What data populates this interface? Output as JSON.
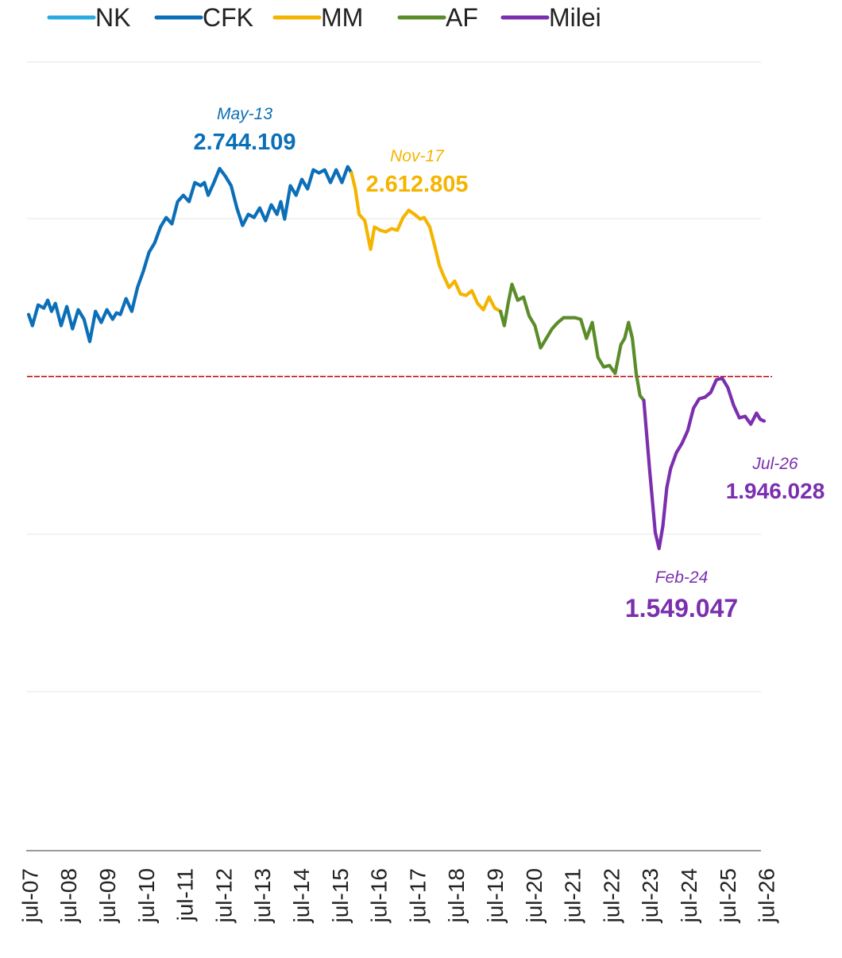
{
  "legend": [
    {
      "name": "NK",
      "color": "#29ABE2"
    },
    {
      "name": "CFK",
      "color": "#0B6FB8"
    },
    {
      "name": "MM",
      "color": "#F4B400"
    },
    {
      "name": "AF",
      "color": "#5B8C2A"
    },
    {
      "name": "Milei",
      "color": "#7B2FAE"
    }
  ],
  "colors": {
    "reference_line": "#C00000",
    "grid": "#e6e6e6",
    "axis": "#9a9a9a",
    "axis_text": "#222222"
  },
  "chart_data": {
    "type": "line",
    "title": "",
    "xlabel": "",
    "ylabel": "",
    "ylim": [
      1200000,
      3100000
    ],
    "grid": true,
    "legend_position": "top-left",
    "reference_line": {
      "y": 2090000,
      "style": "dashed",
      "color": "#C00000"
    },
    "x_tick_labels": [
      "jul-07",
      "jul-08",
      "jul-09",
      "jul-10",
      "jul-11",
      "jul-12",
      "jul-13",
      "jul-14",
      "jul-15",
      "jul-16",
      "jul-17",
      "jul-18",
      "jul-19",
      "jul-20",
      "jul-21",
      "jul-22",
      "jul-23",
      "jul-24",
      "jul-25",
      "jul-26"
    ],
    "series": [
      {
        "name": "CFK",
        "color": "#0B6FB8",
        "x": [
          2007.5,
          2007.6,
          2007.75,
          2007.9,
          2008.0,
          2008.1,
          2008.2,
          2008.35,
          2008.5,
          2008.65,
          2008.8,
          2008.95,
          2009.1,
          2009.25,
          2009.4,
          2009.55,
          2009.7,
          2009.8,
          2009.9,
          2010.05,
          2010.2,
          2010.35,
          2010.5,
          2010.65,
          2010.8,
          2010.95,
          2011.1,
          2011.25,
          2011.4,
          2011.55,
          2011.7,
          2011.85,
          2012.0,
          2012.1,
          2012.2,
          2012.35,
          2012.5,
          2012.65,
          2012.8,
          2012.95,
          2013.1,
          2013.25,
          2013.4,
          2013.55,
          2013.7,
          2013.85,
          2014.0,
          2014.1,
          2014.2,
          2014.35,
          2014.5,
          2014.65,
          2014.8,
          2014.95,
          2015.1,
          2015.25,
          2015.4,
          2015.55,
          2015.7,
          2015.85,
          2015.95
        ],
        "values": [
          2285000,
          2250000,
          2315000,
          2305000,
          2330000,
          2295000,
          2320000,
          2250000,
          2310000,
          2240000,
          2300000,
          2270000,
          2200000,
          2295000,
          2260000,
          2300000,
          2270000,
          2290000,
          2285000,
          2335000,
          2295000,
          2370000,
          2420000,
          2480000,
          2510000,
          2560000,
          2590000,
          2570000,
          2640000,
          2660000,
          2640000,
          2700000,
          2690000,
          2700000,
          2660000,
          2700000,
          2744109,
          2720000,
          2690000,
          2620000,
          2565000,
          2600000,
          2590000,
          2620000,
          2580000,
          2630000,
          2600000,
          2640000,
          2585000,
          2690000,
          2660000,
          2710000,
          2680000,
          2740000,
          2730000,
          2740000,
          2700000,
          2740000,
          2700000,
          2750000,
          2730000
        ]
      },
      {
        "name": "MM",
        "color": "#F4B400",
        "x": [
          2015.95,
          2016.05,
          2016.15,
          2016.3,
          2016.45,
          2016.55,
          2016.7,
          2016.85,
          2017.0,
          2017.15,
          2017.3,
          2017.45,
          2017.6,
          2017.75,
          2017.85,
          2018.0,
          2018.15,
          2018.25,
          2018.35,
          2018.5,
          2018.65,
          2018.8,
          2018.95,
          2019.1,
          2019.25,
          2019.4,
          2019.55,
          2019.7,
          2019.85
        ],
        "values": [
          2730000,
          2680000,
          2600000,
          2580000,
          2490000,
          2560000,
          2550000,
          2545000,
          2555000,
          2550000,
          2590000,
          2612805,
          2600000,
          2585000,
          2590000,
          2560000,
          2490000,
          2440000,
          2410000,
          2370000,
          2390000,
          2350000,
          2345000,
          2360000,
          2320000,
          2300000,
          2340000,
          2305000,
          2295000
        ]
      },
      {
        "name": "AF",
        "color": "#5B8C2A",
        "x": [
          2019.85,
          2019.95,
          2020.05,
          2020.15,
          2020.3,
          2020.45,
          2020.6,
          2020.75,
          2020.9,
          2021.05,
          2021.2,
          2021.35,
          2021.5,
          2021.65,
          2021.8,
          2021.95,
          2022.1,
          2022.25,
          2022.4,
          2022.55,
          2022.7,
          2022.85,
          2023.0,
          2023.1,
          2023.2,
          2023.3,
          2023.4,
          2023.5,
          2023.6
        ],
        "values": [
          2295000,
          2250000,
          2320000,
          2380000,
          2330000,
          2340000,
          2280000,
          2250000,
          2180000,
          2210000,
          2240000,
          2260000,
          2275000,
          2275000,
          2275000,
          2270000,
          2210000,
          2260000,
          2150000,
          2120000,
          2125000,
          2100000,
          2190000,
          2210000,
          2260000,
          2210000,
          2100000,
          2030000,
          2015000
        ]
      },
      {
        "name": "Milei",
        "color": "#7B2FAE",
        "x": [
          2023.6,
          2023.75,
          2023.9,
          2024.0,
          2024.1,
          2024.2,
          2024.3,
          2024.45,
          2024.6,
          2024.75,
          2024.9,
          2025.05,
          2025.2,
          2025.35,
          2025.5,
          2025.65,
          2025.8,
          2025.95,
          2026.1,
          2026.25,
          2026.4,
          2026.55,
          2026.65,
          2026.75
        ],
        "values": [
          2015000,
          1800000,
          1600000,
          1549047,
          1620000,
          1740000,
          1800000,
          1850000,
          1880000,
          1920000,
          1990000,
          2020000,
          2025000,
          2040000,
          2080000,
          2085000,
          2055000,
          2000000,
          1960000,
          1965000,
          1940000,
          1975000,
          1955000,
          1950000
        ]
      }
    ],
    "annotations": [
      {
        "date": "May-13",
        "value": "2.744.109",
        "color": "#0B6FB8"
      },
      {
        "date": "Nov-17",
        "value": "2.612.805",
        "color": "#F4B400"
      },
      {
        "date": "Feb-24",
        "value": "1.549.047",
        "color": "#7B2FAE"
      },
      {
        "date": "Jul-26",
        "value": "1.946.028",
        "color": "#7B2FAE"
      }
    ]
  }
}
